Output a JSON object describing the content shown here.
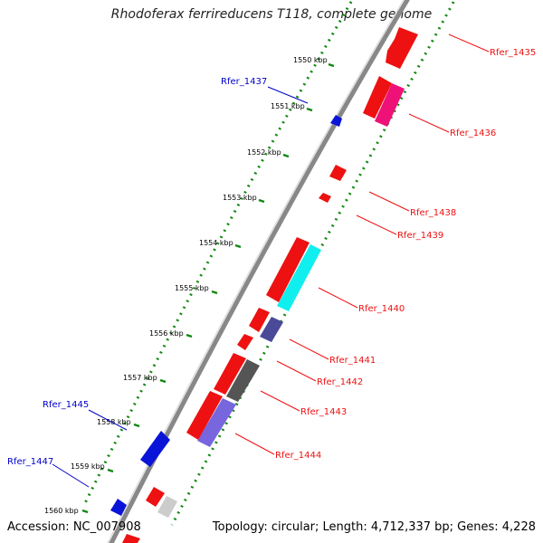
{
  "title": "Rhodoferax ferrireducens T118, complete genome",
  "footer": {
    "accession": "Accession: NC_007908",
    "summary": "Topology: circular; Length: 4,712,337 bp; Genes: 4,228"
  },
  "ticks": [
    "1550 kbp",
    "1551 kbp",
    "1552 kbp",
    "1553 kbp",
    "1554 kbp",
    "1555 kbp",
    "1556 kbp",
    "1557 kbp",
    "1558 kbp",
    "1559 kbp",
    "1560 kbp"
  ],
  "labels": {
    "Rfer_1435": "Rfer_1435",
    "Rfer_1436": "Rfer_1436",
    "Rfer_1437": "Rfer_1437",
    "Rfer_1438": "Rfer_1438",
    "Rfer_1439": "Rfer_1439",
    "Rfer_1440": "Rfer_1440",
    "Rfer_1441": "Rfer_1441",
    "Rfer_1442": "Rfer_1442",
    "Rfer_1443": "Rfer_1443",
    "Rfer_1444": "Rfer_1444",
    "Rfer_1445": "Rfer_1445",
    "Rfer_1447": "Rfer_1447"
  },
  "colors": {
    "red": "#ee1111",
    "blue_label": "#0000cc",
    "blue_gene": "#0a14d8",
    "pink": "#ee1177",
    "cyan": "#11eeee",
    "navy": "#4a4a99",
    "gray": "#555555",
    "lightgray": "#cccccc",
    "purple": "#7766dd",
    "dots": "#118811",
    "backbone": "#888888"
  }
}
